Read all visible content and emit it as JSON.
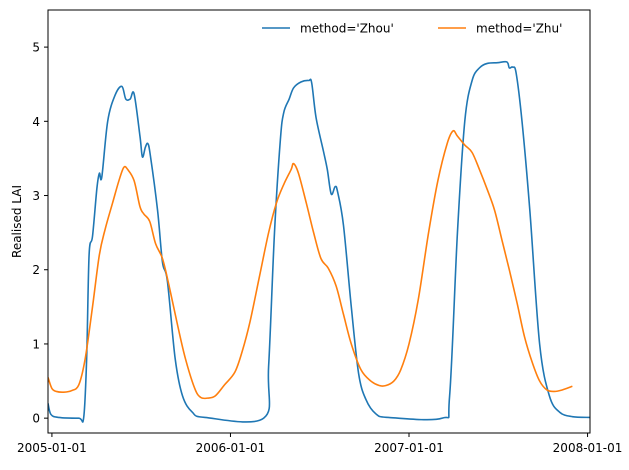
{
  "chart_data": {
    "type": "line",
    "xlabel": "",
    "ylabel": "Realised LAI",
    "xlim": [
      "2004-12-24",
      "2008-01-06"
    ],
    "ylim": [
      -0.2,
      5.5
    ],
    "x_ticks": [
      "2005-01-01",
      "2006-01-01",
      "2007-01-01",
      "2008-01-01"
    ],
    "y_ticks": [
      0,
      1,
      2,
      3,
      4,
      5
    ],
    "grid": false,
    "legend_position": "top-right",
    "series": [
      {
        "name": "method='Zhou'",
        "color": "#1f77b4",
        "points": [
          [
            "2004-12-24",
            0.2
          ],
          [
            "2004-12-30",
            0.05
          ],
          [
            "2005-01-15",
            0.01
          ],
          [
            "2005-02-25",
            0.0
          ],
          [
            "2005-03-07",
            0.01
          ],
          [
            "2005-03-13",
            0.8
          ],
          [
            "2005-03-18",
            2.2
          ],
          [
            "2005-03-25",
            2.45
          ],
          [
            "2005-04-03",
            3.1
          ],
          [
            "2005-04-08",
            3.3
          ],
          [
            "2005-04-13",
            3.25
          ],
          [
            "2005-04-25",
            4.0
          ],
          [
            "2005-05-10",
            4.35
          ],
          [
            "2005-05-24",
            4.47
          ],
          [
            "2005-06-01",
            4.3
          ],
          [
            "2005-06-10",
            4.3
          ],
          [
            "2005-06-18",
            4.37
          ],
          [
            "2005-06-30",
            3.8
          ],
          [
            "2005-07-05",
            3.52
          ],
          [
            "2005-07-11",
            3.65
          ],
          [
            "2005-07-16",
            3.7
          ],
          [
            "2005-07-21",
            3.55
          ],
          [
            "2005-08-05",
            2.8
          ],
          [
            "2005-08-15",
            2.1
          ],
          [
            "2005-08-25",
            1.85
          ],
          [
            "2005-09-10",
            0.8
          ],
          [
            "2005-09-25",
            0.3
          ],
          [
            "2005-10-15",
            0.08
          ],
          [
            "2005-11-10",
            0.01
          ],
          [
            "2006-03-10",
            0.0
          ],
          [
            "2006-03-20",
            0.7
          ],
          [
            "2006-04-01",
            2.5
          ],
          [
            "2006-04-13",
            3.75
          ],
          [
            "2006-04-20",
            4.12
          ],
          [
            "2006-05-01",
            4.3
          ],
          [
            "2006-05-10",
            4.45
          ],
          [
            "2006-05-25",
            4.53
          ],
          [
            "2006-06-10",
            4.55
          ],
          [
            "2006-06-16",
            4.52
          ],
          [
            "2006-06-25",
            4.05
          ],
          [
            "2006-07-10",
            3.6
          ],
          [
            "2006-07-18",
            3.35
          ],
          [
            "2006-07-26",
            3.02
          ],
          [
            "2006-08-03",
            3.12
          ],
          [
            "2006-08-08",
            3.05
          ],
          [
            "2006-08-20",
            2.6
          ],
          [
            "2006-09-05",
            1.5
          ],
          [
            "2006-09-20",
            0.6
          ],
          [
            "2006-10-05",
            0.25
          ],
          [
            "2006-10-25",
            0.06
          ],
          [
            "2006-11-20",
            0.01
          ],
          [
            "2007-03-10",
            0.0
          ],
          [
            "2007-03-25",
            0.3
          ],
          [
            "2007-04-10",
            2.5
          ],
          [
            "2007-04-25",
            4.0
          ],
          [
            "2007-05-10",
            4.55
          ],
          [
            "2007-05-25",
            4.72
          ],
          [
            "2007-06-10",
            4.78
          ],
          [
            "2007-07-01",
            4.79
          ],
          [
            "2007-07-20",
            4.8
          ],
          [
            "2007-07-25",
            4.72
          ],
          [
            "2007-08-01",
            4.73
          ],
          [
            "2007-08-08",
            4.65
          ],
          [
            "2007-08-20",
            4.0
          ],
          [
            "2007-09-05",
            2.8
          ],
          [
            "2007-09-25",
            1.0
          ],
          [
            "2007-10-15",
            0.3
          ],
          [
            "2007-11-05",
            0.08
          ],
          [
            "2007-12-01",
            0.02
          ],
          [
            "2008-01-06",
            0.01
          ]
        ]
      },
      {
        "name": "method='Zhu'",
        "color": "#ff7f0e",
        "points": [
          [
            "2004-12-24",
            0.55
          ],
          [
            "2005-01-01",
            0.4
          ],
          [
            "2005-01-10",
            0.36
          ],
          [
            "2005-01-25",
            0.35
          ],
          [
            "2005-02-10",
            0.37
          ],
          [
            "2005-02-25",
            0.45
          ],
          [
            "2005-03-10",
            0.8
          ],
          [
            "2005-03-25",
            1.5
          ],
          [
            "2005-04-08",
            2.2
          ],
          [
            "2005-04-20",
            2.55
          ],
          [
            "2005-05-05",
            2.9
          ],
          [
            "2005-05-18",
            3.2
          ],
          [
            "2005-05-28",
            3.38
          ],
          [
            "2005-06-05",
            3.35
          ],
          [
            "2005-06-18",
            3.2
          ],
          [
            "2005-06-30",
            2.85
          ],
          [
            "2005-07-08",
            2.75
          ],
          [
            "2005-07-20",
            2.65
          ],
          [
            "2005-08-01",
            2.35
          ],
          [
            "2005-08-15",
            2.15
          ],
          [
            "2005-08-28",
            1.8
          ],
          [
            "2005-09-15",
            1.25
          ],
          [
            "2005-10-01",
            0.8
          ],
          [
            "2005-10-20",
            0.4
          ],
          [
            "2005-11-01",
            0.28
          ],
          [
            "2005-11-15",
            0.27
          ],
          [
            "2005-12-01",
            0.3
          ],
          [
            "2005-12-20",
            0.45
          ],
          [
            "2006-01-10",
            0.62
          ],
          [
            "2006-01-25",
            0.9
          ],
          [
            "2006-02-10",
            1.3
          ],
          [
            "2006-03-01",
            1.9
          ],
          [
            "2006-03-20",
            2.5
          ],
          [
            "2006-04-05",
            2.9
          ],
          [
            "2006-04-20",
            3.15
          ],
          [
            "2006-05-05",
            3.35
          ],
          [
            "2006-05-10",
            3.43
          ],
          [
            "2006-05-20",
            3.3
          ],
          [
            "2006-06-05",
            2.9
          ],
          [
            "2006-06-20",
            2.5
          ],
          [
            "2006-07-05",
            2.15
          ],
          [
            "2006-07-20",
            2.02
          ],
          [
            "2006-08-05",
            1.78
          ],
          [
            "2006-08-20",
            1.4
          ],
          [
            "2006-09-05",
            1.0
          ],
          [
            "2006-09-25",
            0.65
          ],
          [
            "2006-10-15",
            0.5
          ],
          [
            "2006-11-01",
            0.44
          ],
          [
            "2006-11-15",
            0.44
          ],
          [
            "2006-12-01",
            0.5
          ],
          [
            "2006-12-15",
            0.65
          ],
          [
            "2007-01-01",
            1.0
          ],
          [
            "2007-01-20",
            1.6
          ],
          [
            "2007-02-10",
            2.5
          ],
          [
            "2007-03-01",
            3.2
          ],
          [
            "2007-03-20",
            3.7
          ],
          [
            "2007-04-01",
            3.87
          ],
          [
            "2007-04-10",
            3.8
          ],
          [
            "2007-04-25",
            3.68
          ],
          [
            "2007-05-10",
            3.58
          ],
          [
            "2007-05-25",
            3.35
          ],
          [
            "2007-06-10",
            3.08
          ],
          [
            "2007-06-25",
            2.8
          ],
          [
            "2007-07-10",
            2.4
          ],
          [
            "2007-07-25",
            2.0
          ],
          [
            "2007-08-10",
            1.55
          ],
          [
            "2007-08-25",
            1.1
          ],
          [
            "2007-09-10",
            0.75
          ],
          [
            "2007-09-25",
            0.5
          ],
          [
            "2007-10-10",
            0.38
          ],
          [
            "2007-10-25",
            0.36
          ],
          [
            "2007-11-10",
            0.38
          ],
          [
            "2007-12-01",
            0.43
          ]
        ]
      }
    ]
  }
}
